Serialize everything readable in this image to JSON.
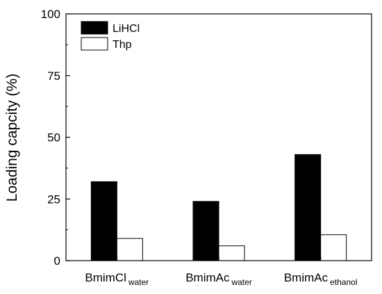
{
  "chart_data": {
    "type": "bar",
    "categories": [
      {
        "main": "BmimCl",
        "sub": "water"
      },
      {
        "main": "BmimAc",
        "sub": "water"
      },
      {
        "main": "BmimAc",
        "sub": "ethanol"
      }
    ],
    "series": [
      {
        "name": "LiHCl",
        "values": [
          32,
          24,
          43
        ],
        "color": "#000000"
      },
      {
        "name": "Thp",
        "values": [
          9,
          6,
          10.5
        ],
        "color": "#ffffff"
      }
    ],
    "xlabel": "",
    "ylabel": "Loading capcity (%)",
    "ylim": [
      0,
      100
    ],
    "yticks": [
      0,
      25,
      50,
      75,
      100
    ],
    "grid": false,
    "legend_position": "top-left"
  }
}
